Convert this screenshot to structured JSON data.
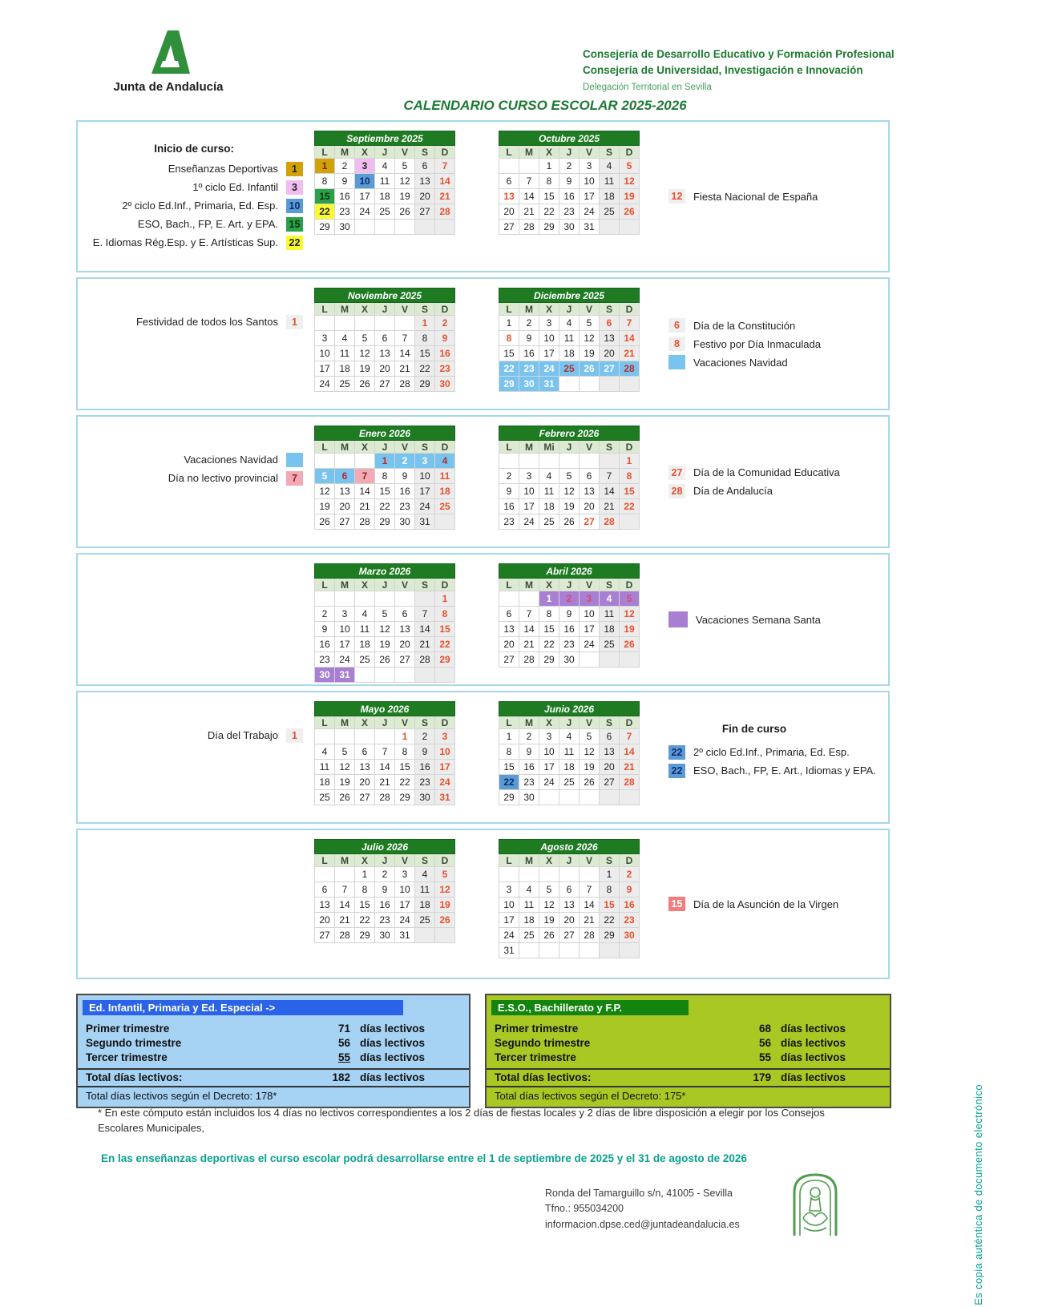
{
  "header": {
    "logo_text": "Junta de Andalucía",
    "org_lines": [
      "Consejería de Desarrollo Educativo y Formación Profesional",
      "Consejería de Universidad, Investigación e Innovación",
      "Delegación Territorial en Sevilla"
    ],
    "title": "CALENDARIO CURSO ESCOLAR 2025-2026"
  },
  "colors": {
    "accent_green": "#1d7a34",
    "holiday_red": "#e8502d",
    "navidad_blue": "#79c3ef",
    "semana_santa_purple": "#a97fd3",
    "provincial_pink": "#f5a9b4",
    "fin_curso_blue": "#5b9bd5",
    "asuncion_salmon": "#f47c7c",
    "inicio_gold": "#d2a106",
    "inicio_pink": "#f0bdf0",
    "inicio_green": "#2ba04a",
    "inicio_yellow": "#fafa30",
    "month_header_green": "#1e7b22",
    "summary_left_bg": "#a6d2f3",
    "summary_right_bg": "#a9c823"
  },
  "months": [
    {
      "name": "Septiembre 2025",
      "dow": [
        "L",
        "M",
        "X",
        "J",
        "V",
        "S",
        "D"
      ],
      "weeks": [
        [
          "1|gold",
          "2",
          "3|pink",
          "4",
          "5",
          "6",
          "7|red"
        ],
        [
          "8",
          "9",
          "10|blue",
          "11",
          "12",
          "13",
          "14|red"
        ],
        [
          "15|green",
          "16",
          "17",
          "18",
          "19",
          "20",
          "21|red"
        ],
        [
          "22|yellow",
          "23",
          "24",
          "25",
          "26",
          "27",
          "28|red"
        ],
        [
          "29",
          "30",
          "",
          "",
          "",
          "",
          ""
        ]
      ]
    },
    {
      "name": "Octubre 2025",
      "dow": [
        "L",
        "M",
        "X",
        "J",
        "V",
        "S",
        "D"
      ],
      "weeks": [
        [
          "",
          "",
          "1",
          "2",
          "3",
          "4",
          "5|red"
        ],
        [
          "6",
          "7",
          "8",
          "9",
          "10",
          "11",
          "12|red"
        ],
        [
          "13|red",
          "14",
          "15",
          "16",
          "17",
          "18",
          "19|red"
        ],
        [
          "20",
          "21",
          "22",
          "23",
          "24",
          "25",
          "26|red"
        ],
        [
          "27",
          "28",
          "29",
          "30",
          "31",
          "",
          ""
        ]
      ]
    },
    {
      "name": "Noviembre 2025",
      "dow": [
        "L",
        "M",
        "X",
        "J",
        "V",
        "S",
        "D"
      ],
      "weeks": [
        [
          "",
          "",
          "",
          "",
          "",
          "1|red",
          "2|red"
        ],
        [
          "3",
          "4",
          "5",
          "6",
          "7",
          "8",
          "9|red"
        ],
        [
          "10",
          "11",
          "12",
          "13",
          "14",
          "15",
          "16|red"
        ],
        [
          "17",
          "18",
          "19",
          "20",
          "21",
          "22",
          "23|red"
        ],
        [
          "24",
          "25",
          "26",
          "27",
          "28",
          "29",
          "30|red"
        ]
      ]
    },
    {
      "name": "Diciembre 2025",
      "dow": [
        "L",
        "M",
        "X",
        "J",
        "V",
        "S",
        "D"
      ],
      "weeks": [
        [
          "1",
          "2",
          "3",
          "4",
          "5",
          "6|red",
          "7|red"
        ],
        [
          "8|red",
          "9",
          "10",
          "11",
          "12",
          "13",
          "14|red"
        ],
        [
          "15",
          "16",
          "17",
          "18",
          "19",
          "20",
          "21|red"
        ],
        [
          "22|nav",
          "23|nav",
          "24|nav",
          "25|navred",
          "26|nav",
          "27|nav",
          "28|navred"
        ],
        [
          "29|nav",
          "30|nav",
          "31|nav",
          "",
          "",
          "",
          ""
        ]
      ]
    },
    {
      "name": "Enero 2026",
      "dow": [
        "L",
        "M",
        "X",
        "J",
        "V",
        "S",
        "D"
      ],
      "weeks": [
        [
          "",
          "",
          "",
          "1|navred",
          "2|nav",
          "3|nav",
          "4|navred"
        ],
        [
          "5|nav",
          "6|navred",
          "7|pcell",
          "8",
          "9",
          "10",
          "11|red"
        ],
        [
          "12",
          "13",
          "14",
          "15",
          "16",
          "17",
          "18|red"
        ],
        [
          "19",
          "20",
          "21",
          "22",
          "23",
          "24",
          "25|red"
        ],
        [
          "26",
          "27",
          "28",
          "29",
          "30",
          "31",
          ""
        ]
      ]
    },
    {
      "name": "Febrero 2026",
      "dow": [
        "L",
        "M",
        "Mi",
        "J",
        "V",
        "S",
        "D"
      ],
      "weeks": [
        [
          "",
          "",
          "",
          "",
          "",
          "",
          "1|red"
        ],
        [
          "2",
          "3",
          "4",
          "5",
          "6",
          "7",
          "8|red"
        ],
        [
          "9",
          "10",
          "11",
          "12",
          "13",
          "14",
          "15|red"
        ],
        [
          "16",
          "17",
          "18",
          "19",
          "20",
          "21",
          "22|red"
        ],
        [
          "23",
          "24",
          "25",
          "26",
          "27|red",
          "28|red",
          ""
        ]
      ]
    },
    {
      "name": "Marzo 2026",
      "dow": [
        "L",
        "M",
        "X",
        "J",
        "V",
        "S",
        "D"
      ],
      "weeks": [
        [
          "",
          "",
          "",
          "",
          "",
          "",
          "1|red"
        ],
        [
          "2",
          "3",
          "4",
          "5",
          "6",
          "7",
          "8|red"
        ],
        [
          "9",
          "10",
          "11",
          "12",
          "13",
          "14",
          "15|red"
        ],
        [
          "16",
          "17",
          "18",
          "19",
          "20",
          "21",
          "22|red"
        ],
        [
          "23",
          "24",
          "25",
          "26",
          "27",
          "28",
          "29|red"
        ],
        [
          "30|pur",
          "31|pur",
          "",
          "",
          "",
          "",
          ""
        ]
      ]
    },
    {
      "name": "Abril 2026",
      "dow": [
        "L",
        "M",
        "X",
        "J",
        "V",
        "S",
        "D"
      ],
      "weeks": [
        [
          "",
          "",
          "1|pur",
          "2|purred",
          "3|purred",
          "4|pur",
          "5|purred"
        ],
        [
          "6",
          "7",
          "8",
          "9",
          "10",
          "11",
          "12|red"
        ],
        [
          "13",
          "14",
          "15",
          "16",
          "17",
          "18",
          "19|red"
        ],
        [
          "20",
          "21",
          "22",
          "23",
          "24",
          "25",
          "26|red"
        ],
        [
          "27",
          "28",
          "29",
          "30",
          "",
          "",
          ""
        ]
      ]
    },
    {
      "name": "Mayo 2026",
      "dow": [
        "L",
        "M",
        "X",
        "J",
        "V",
        "S",
        "D"
      ],
      "weeks": [
        [
          "",
          "",
          "",
          "",
          "1|red",
          "2",
          "3|red"
        ],
        [
          "4",
          "5",
          "6",
          "7",
          "8",
          "9",
          "10|red"
        ],
        [
          "11",
          "12",
          "13",
          "14",
          "15",
          "16",
          "17|red"
        ],
        [
          "18",
          "19",
          "20",
          "21",
          "22",
          "23",
          "24|red"
        ],
        [
          "25",
          "26",
          "27",
          "28",
          "29",
          "30",
          "31|red"
        ]
      ]
    },
    {
      "name": "Junio 2026",
      "dow": [
        "L",
        "M",
        "X",
        "J",
        "V",
        "S",
        "D"
      ],
      "weeks": [
        [
          "1",
          "2",
          "3",
          "4",
          "5",
          "6",
          "7|red"
        ],
        [
          "8",
          "9",
          "10",
          "11",
          "12",
          "13",
          "14|red"
        ],
        [
          "15",
          "16",
          "17",
          "18",
          "19",
          "20",
          "21|red"
        ],
        [
          "22|fin",
          "23",
          "24",
          "25",
          "26",
          "27",
          "28|red"
        ],
        [
          "29",
          "30",
          "",
          "",
          "",
          "",
          ""
        ]
      ]
    },
    {
      "name": "Julio 2026",
      "dow": [
        "L",
        "M",
        "X",
        "J",
        "V",
        "S",
        "D"
      ],
      "weeks": [
        [
          "",
          "",
          "1",
          "2",
          "3",
          "4",
          "5|red"
        ],
        [
          "6",
          "7",
          "8",
          "9",
          "10",
          "11",
          "12|red"
        ],
        [
          "13",
          "14",
          "15",
          "16",
          "17",
          "18",
          "19|red"
        ],
        [
          "20",
          "21",
          "22",
          "23",
          "24",
          "25",
          "26|red"
        ],
        [
          "27",
          "28",
          "29",
          "30",
          "31",
          "",
          ""
        ]
      ]
    },
    {
      "name": "Agosto 2026",
      "dow": [
        "L",
        "M",
        "X",
        "J",
        "V",
        "S",
        "D"
      ],
      "weeks": [
        [
          "",
          "",
          "",
          "",
          "",
          "1",
          "2|red"
        ],
        [
          "3",
          "4",
          "5",
          "6",
          "7",
          "8",
          "9|red"
        ],
        [
          "10",
          "11",
          "12",
          "13",
          "14",
          "15|red",
          "16|red"
        ],
        [
          "17",
          "18",
          "19",
          "20",
          "21",
          "22",
          "23|red"
        ],
        [
          "24",
          "25",
          "26",
          "27",
          "28",
          "29",
          "30|red"
        ],
        [
          "31",
          "",
          "",
          "",
          "",
          "",
          ""
        ]
      ]
    }
  ],
  "sections": [
    {
      "months": [
        0,
        1
      ],
      "left": {
        "title": "Inicio de curso:",
        "items": [
          {
            "label": "Enseñanzas Deportivas",
            "chip": "1",
            "style": "gold"
          },
          {
            "label": "1º ciclo Ed. Infantil",
            "chip": "3",
            "style": "pink"
          },
          {
            "label": "2º ciclo Ed.Inf., Primaria, Ed. Esp.",
            "chip": "10",
            "style": "blue"
          },
          {
            "label": "ESO, Bach., FP, E. Art. y EPA.",
            "chip": "15",
            "style": "green"
          },
          {
            "label": "E. Idiomas Rég.Esp. y E. Artísticas Sup.",
            "chip": "22",
            "style": "yellow"
          }
        ]
      },
      "right": {
        "items": [
          {
            "chip": "12",
            "style": "ref",
            "label": "Fiesta Nacional de España"
          }
        ]
      }
    },
    {
      "months": [
        2,
        3
      ],
      "left": {
        "items": [
          {
            "label": "Festividad de todos los Santos",
            "chip": "1",
            "style": "ref"
          }
        ]
      },
      "right": {
        "items": [
          {
            "chip": "6",
            "style": "ref",
            "label": "Día de la Constitución"
          },
          {
            "chip": "8",
            "style": "ref",
            "label": "Festivo por Día Inmaculada"
          },
          {
            "chip": "",
            "style": "navsq",
            "label": "Vacaciones Navidad"
          }
        ]
      }
    },
    {
      "months": [
        4,
        5
      ],
      "left": {
        "items": [
          {
            "label": "Vacaciones Navidad",
            "chip": "",
            "style": "navsq"
          },
          {
            "label": "Día no lectivo provincial",
            "chip": "7",
            "style": "pcell"
          }
        ]
      },
      "right": {
        "items": [
          {
            "chip": "27",
            "style": "ref",
            "label": "Día de la Comunidad Educativa"
          },
          {
            "chip": "28",
            "style": "ref",
            "label": "Día de Andalucía"
          }
        ]
      }
    },
    {
      "months": [
        6,
        7
      ],
      "right": {
        "items": [
          {
            "chip": "",
            "style": "pursq",
            "label": "Vacaciones Semana Santa"
          }
        ]
      }
    },
    {
      "months": [
        8,
        9
      ],
      "left": {
        "items": [
          {
            "label": "Día del Trabajo",
            "chip": "1",
            "style": "ref"
          }
        ]
      },
      "right": {
        "title": "Fin de curso",
        "items": [
          {
            "chip": "22",
            "style": "fin",
            "label": "2º ciclo Ed.Inf., Primaria, Ed. Esp."
          },
          {
            "chip": "22",
            "style": "fin",
            "label": "ESO, Bach., FP, E. Art., Idiomas y EPA."
          }
        ]
      }
    },
    {
      "months": [
        10,
        11
      ],
      "right": {
        "items": [
          {
            "chip": "15",
            "style": "salmon",
            "label": "Día de la Asunción de la Virgen"
          }
        ]
      }
    }
  ],
  "summary_left": {
    "header": "Ed. Infantil, Primaria y Ed. Especial ->",
    "rows": [
      {
        "label": "Primer trimestre",
        "value": "71",
        "unit": "días lectivos"
      },
      {
        "label": "Segundo trimestre",
        "value": "56",
        "unit": "días lectivos"
      },
      {
        "label": "Tercer trimestre",
        "value": "55",
        "unit": "días lectivos",
        "underline": true
      },
      {
        "label": "Total días lectivos:",
        "value": "182",
        "unit": "días lectivos",
        "total": true
      }
    ],
    "decree": "Total días lectivos según el Decreto: 178*"
  },
  "summary_right": {
    "header": "E.S.O., Bachillerato y F.P.",
    "rows": [
      {
        "label": "Primer trimestre",
        "value": "68",
        "unit": "días lectivos"
      },
      {
        "label": "Segundo trimestre",
        "value": "56",
        "unit": "días lectivos"
      },
      {
        "label": "Tercer trimestre",
        "value": "55",
        "unit": "días lectivos"
      },
      {
        "label": "Total días lectivos:",
        "value": "179",
        "unit": "días lectivos",
        "total": true
      }
    ],
    "decree": "Total días lectivos según el Decreto: 175*"
  },
  "footnote": "* En este cómputo están incluidos los 4 días no lectivos correspondientes a los 2 días de fiestas locales y 2 días de libre disposición a elegir por los Consejos Escolares Municipales,",
  "deportivas_note": "En las enseñanzas deportivas el curso escolar podrá desarrollarse entre el 1 de septiembre de 2025 y el 31 de agosto de 2026",
  "contact": {
    "address": "Ronda del Tamarguillo s/n, 41005 - Sevilla",
    "phone": "Tfno.: 955034200",
    "email": "informacion.dpse.ced@juntadeandalucia.es"
  },
  "vertical_note": "Es copia auténtica de documento electrónico"
}
